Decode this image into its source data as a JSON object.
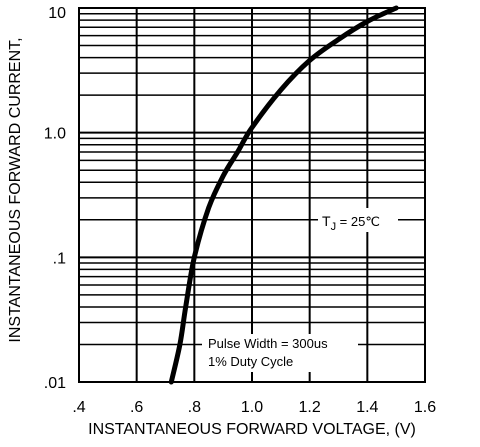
{
  "chart_data": {
    "type": "line",
    "xlabel": "INSTANTANEOUS FORWARD VOLTAGE, (V)",
    "ylabel": "INSTANTANEOUS FORWARD CURRENT,",
    "x_scale": "linear",
    "y_scale": "log",
    "xlim": [
      0.4,
      1.6
    ],
    "ylim": [
      0.01,
      10
    ],
    "x_ticks": [
      0.4,
      0.6,
      0.8,
      1.0,
      1.2,
      1.4,
      1.6
    ],
    "x_tick_labels": [
      ".4",
      ".6",
      ".8",
      "1.0",
      "1.2",
      "1.4",
      "1.6"
    ],
    "y_ticks": [
      0.01,
      0.1,
      1,
      10
    ],
    "y_tick_labels": [
      ".01",
      ".1",
      "1.0",
      "10"
    ],
    "grid": true,
    "series": [
      {
        "points": [
          [
            0.72,
            0.01
          ],
          [
            0.75,
            0.02
          ],
          [
            0.77,
            0.04
          ],
          [
            0.8,
            0.1
          ],
          [
            0.85,
            0.25
          ],
          [
            0.9,
            0.45
          ],
          [
            0.95,
            0.7
          ],
          [
            1.0,
            1.1
          ],
          [
            1.1,
            2.2
          ],
          [
            1.2,
            3.8
          ],
          [
            1.3,
            5.6
          ],
          [
            1.4,
            7.8
          ],
          [
            1.5,
            10
          ]
        ]
      }
    ],
    "annotations": {
      "temp_label": "T",
      "temp_sub": "J",
      "temp_value": " = 25℃",
      "pulse_line1": "Pulse Width = 300us",
      "pulse_line2": "1% Duty Cycle"
    }
  }
}
